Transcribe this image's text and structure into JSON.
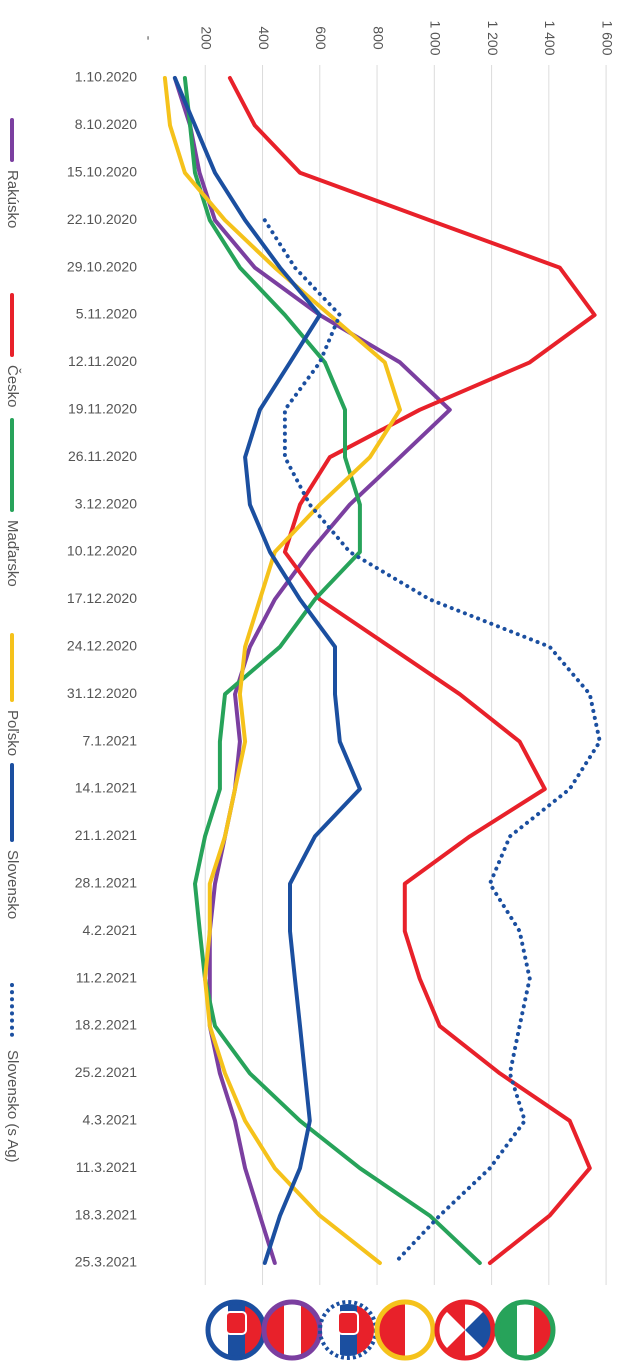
{
  "chart_data": {
    "type": "line",
    "categories": [
      "1.10.2020",
      "8.10.2020",
      "15.10.2020",
      "22.10.2020",
      "29.10.2020",
      "5.11.2020",
      "12.11.2020",
      "19.11.2020",
      "26.11.2020",
      "3.12.2020",
      "10.12.2020",
      "17.12.2020",
      "24.12.2020",
      "31.12.2020",
      "7.1.2021",
      "14.1.2021",
      "21.1.2021",
      "28.1.2021",
      "4.2.2021",
      "11.2.2021",
      "18.2.2021",
      "25.2.2021",
      "4.3.2021",
      "11.3.2021",
      "18.3.2021",
      "25.3.2021"
    ],
    "series": [
      {
        "name": "Rakúsko",
        "color": "#7b3fa0",
        "values": [
          94,
          147,
          180,
          234,
          373,
          600,
          880,
          1054,
          880,
          705,
          565,
          443,
          356,
          304,
          321,
          304,
          269,
          234,
          216,
          216,
          216,
          251,
          304,
          339,
          391,
          443
        ]
      },
      {
        "name": "Česko",
        "color": "#e8212a",
        "values": [
          286,
          373,
          531,
          984,
          1438,
          1560,
          1333,
          949,
          635,
          531,
          478,
          600,
          845,
          1089,
          1298,
          1386,
          1124,
          897,
          897,
          949,
          1019,
          1229,
          1473,
          1543,
          1403,
          1194
        ]
      },
      {
        "name": "Maďarsko",
        "color": "#27a35a",
        "values": [
          129,
          147,
          164,
          216,
          321,
          478,
          618,
          688,
          688,
          740,
          740,
          583,
          461,
          269,
          251,
          251,
          199,
          164,
          181,
          199,
          234,
          356,
          531,
          740,
          984,
          1159
        ]
      },
      {
        "name": "Poľsko",
        "color": "#f5c21b",
        "values": [
          59,
          77,
          129,
          269,
          443,
          635,
          827,
          880,
          775,
          600,
          443,
          391,
          339,
          321,
          339,
          304,
          269,
          216,
          216,
          199,
          216,
          269,
          339,
          443,
          600,
          810
        ]
      },
      {
        "name": "Slovensko",
        "color": "#1b4fa0",
        "values": [
          94,
          164,
          234,
          339,
          461,
          600,
          496,
          391,
          339,
          356,
          426,
          531,
          653,
          653,
          670,
          740,
          583,
          496,
          496,
          513,
          531,
          548,
          565,
          531,
          461,
          408
        ]
      },
      {
        "name": "Slovensko (s Ag)",
        "color": "#1b4fa0",
        "dashed": true,
        "values": [
          null,
          null,
          null,
          408,
          513,
          670,
          600,
          478,
          478,
          565,
          705,
          984,
          1403,
          1543,
          1578,
          1473,
          1264,
          1194,
          1298,
          1333,
          1298,
          1264,
          1316,
          1194,
          1019,
          862
        ]
      }
    ],
    "xlim": [
      0,
      1680
    ],
    "xticks": [
      {
        "value": 0,
        "label": "-"
      },
      200,
      400,
      600,
      800,
      {
        "value": 1000,
        "label": "1 000"
      },
      {
        "value": 1200,
        "label": "1 200"
      },
      {
        "value": 1400,
        "label": "1 400"
      },
      {
        "value": 1600,
        "label": "1 600"
      }
    ],
    "grid": true
  }
}
